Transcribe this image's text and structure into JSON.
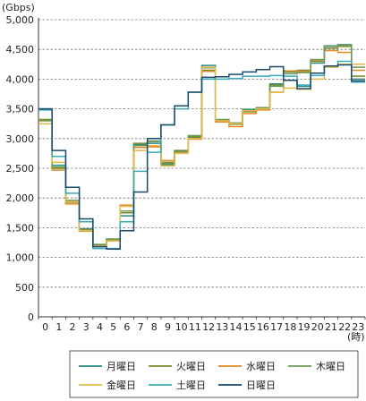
{
  "chart_data": {
    "type": "line",
    "step": true,
    "unit_label": "(Gbps)",
    "x_unit_label": "(時)",
    "x": [
      0,
      1,
      2,
      3,
      4,
      5,
      6,
      7,
      8,
      9,
      10,
      11,
      12,
      13,
      14,
      15,
      16,
      17,
      18,
      19,
      20,
      21,
      22,
      23
    ],
    "xticks": [
      "0",
      "1",
      "2",
      "3",
      "4",
      "5",
      "6",
      "7",
      "8",
      "9",
      "10",
      "11",
      "12",
      "13",
      "14",
      "15",
      "16",
      "17",
      "18",
      "19",
      "20",
      "21",
      "22",
      "23"
    ],
    "ylim": [
      0,
      5000
    ],
    "yticks": [
      0,
      500,
      1000,
      1500,
      2000,
      2500,
      3000,
      3500,
      4000,
      4500,
      5000
    ],
    "ytick_labels": [
      "0",
      "500",
      "1,000",
      "1,500",
      "2,000",
      "2,500",
      "3,000",
      "3,500",
      "4,000",
      "4,500",
      "5,000"
    ],
    "grid": "horizontal-dashed",
    "legend_position": "bottom",
    "series": [
      {
        "name": "月曜日",
        "color": "#2a8a7e",
        "values": [
          3500,
          2550,
          1950,
          1480,
          1200,
          1290,
          1700,
          2900,
          2920,
          2560,
          2790,
          3020,
          4230,
          3310,
          3260,
          3490,
          3520,
          3920,
          3980,
          3880,
          4270,
          4560,
          4580,
          4000
        ]
      },
      {
        "name": "火曜日",
        "color": "#7a8a2a",
        "values": [
          3320,
          2500,
          1930,
          1460,
          1210,
          1300,
          1750,
          2920,
          2950,
          2600,
          2800,
          3030,
          4150,
          3300,
          3240,
          3450,
          3490,
          3900,
          4120,
          4150,
          4300,
          4520,
          4550,
          4050
        ]
      },
      {
        "name": "水曜日",
        "color": "#e08a28",
        "values": [
          3300,
          2470,
          1900,
          1440,
          1190,
          1280,
          1880,
          2850,
          2860,
          2630,
          2770,
          2990,
          4130,
          3280,
          3200,
          3420,
          3480,
          3780,
          4140,
          4130,
          4320,
          4480,
          4450,
          4150
        ]
      },
      {
        "name": "木曜日",
        "color": "#6a9a55",
        "values": [
          3300,
          2520,
          1960,
          1470,
          1220,
          1310,
          1780,
          2880,
          2960,
          2580,
          2780,
          3050,
          4190,
          3320,
          3260,
          3470,
          3520,
          3880,
          4090,
          4110,
          4330,
          4550,
          4570,
          4200
        ]
      },
      {
        "name": "金曜日",
        "color": "#e6b848",
        "values": [
          3250,
          2600,
          1940,
          1450,
          1190,
          1280,
          1860,
          2800,
          2880,
          2540,
          2750,
          3000,
          4200,
          3300,
          3250,
          3470,
          3500,
          3780,
          3850,
          3830,
          4000,
          4200,
          4250,
          4250
        ]
      },
      {
        "name": "土曜日",
        "color": "#3aaab8",
        "values": [
          3480,
          2700,
          2080,
          1600,
          1150,
          1150,
          1600,
          2450,
          2770,
          3230,
          3500,
          3780,
          4000,
          4000,
          4010,
          4050,
          4050,
          4060,
          4050,
          3900,
          4060,
          4220,
          4300,
          3950
        ]
      },
      {
        "name": "日曜日",
        "color": "#1a4a70",
        "values": [
          3500,
          2800,
          2180,
          1650,
          1180,
          1140,
          1450,
          2100,
          3000,
          3230,
          3550,
          3780,
          4030,
          4040,
          4080,
          4120,
          4160,
          4210,
          3980,
          3840,
          4100,
          4220,
          4240,
          3970
        ]
      }
    ]
  }
}
